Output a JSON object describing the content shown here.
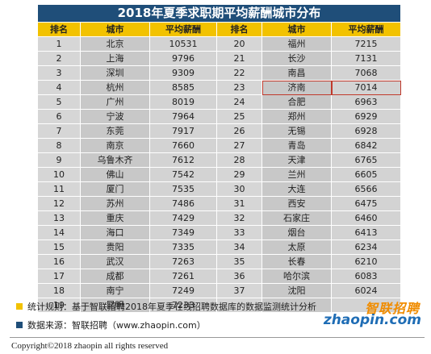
{
  "title": "2018年夏季求职期平均薪酬城市分布",
  "headers": [
    "排名",
    "城市",
    "平均薪酬",
    "排名",
    "城市",
    "平均薪酬"
  ],
  "rows": [
    {
      "l": [
        "1",
        "北京",
        "10531"
      ],
      "r": [
        "20",
        "福州",
        "7215"
      ]
    },
    {
      "l": [
        "2",
        "上海",
        "9796"
      ],
      "r": [
        "21",
        "长沙",
        "7131"
      ]
    },
    {
      "l": [
        "3",
        "深圳",
        "9309"
      ],
      "r": [
        "22",
        "南昌",
        "7068"
      ]
    },
    {
      "l": [
        "4",
        "杭州",
        "8585"
      ],
      "r": [
        "23",
        "济南",
        "7014"
      ]
    },
    {
      "l": [
        "5",
        "广州",
        "8019"
      ],
      "r": [
        "24",
        "合肥",
        "6963"
      ]
    },
    {
      "l": [
        "6",
        "宁波",
        "7964"
      ],
      "r": [
        "25",
        "郑州",
        "6929"
      ]
    },
    {
      "l": [
        "7",
        "东莞",
        "7917"
      ],
      "r": [
        "26",
        "无锡",
        "6928"
      ]
    },
    {
      "l": [
        "8",
        "南京",
        "7660"
      ],
      "r": [
        "27",
        "青岛",
        "6842"
      ]
    },
    {
      "l": [
        "9",
        "乌鲁木齐",
        "7612"
      ],
      "r": [
        "28",
        "天津",
        "6765"
      ]
    },
    {
      "l": [
        "10",
        "佛山",
        "7542"
      ],
      "r": [
        "29",
        "兰州",
        "6605"
      ]
    },
    {
      "l": [
        "11",
        "厦门",
        "7535"
      ],
      "r": [
        "30",
        "大连",
        "6566"
      ]
    },
    {
      "l": [
        "12",
        "苏州",
        "7486"
      ],
      "r": [
        "31",
        "西安",
        "6475"
      ]
    },
    {
      "l": [
        "13",
        "重庆",
        "7429"
      ],
      "r": [
        "32",
        "石家庄",
        "6460"
      ]
    },
    {
      "l": [
        "14",
        "海口",
        "7349"
      ],
      "r": [
        "33",
        "烟台",
        "6413"
      ]
    },
    {
      "l": [
        "15",
        "贵阳",
        "7335"
      ],
      "r": [
        "34",
        "太原",
        "6234"
      ]
    },
    {
      "l": [
        "16",
        "武汉",
        "7263"
      ],
      "r": [
        "35",
        "长春",
        "6210"
      ]
    },
    {
      "l": [
        "17",
        "成都",
        "7261"
      ],
      "r": [
        "36",
        "哈尔滨",
        "6083"
      ]
    },
    {
      "l": [
        "18",
        "南宁",
        "7249"
      ],
      "r": [
        "37",
        "沈阳",
        "6024"
      ]
    },
    {
      "l": [
        "19",
        "昆明",
        "7233"
      ],
      "r": [
        "",
        "",
        ""
      ]
    }
  ],
  "highlight_rank": "23",
  "notes": {
    "rule": "统计规则：基于智联招聘2018年夏季在线招聘数据库的数据监测统计分析",
    "source": "数据来源：智联招聘（www.zhaopin.com）"
  },
  "logo": {
    "cn": "智联招聘",
    "en": "zhaopin.com"
  },
  "copyright": "Copyright©2018 zhaopin all rights reserved",
  "colors": {
    "title_bg": "#1f4e79",
    "header_bg": "#f2c200",
    "rule_square": "#f2c200",
    "source_square": "#1f4e79",
    "highlight_border": "#c0392b"
  }
}
